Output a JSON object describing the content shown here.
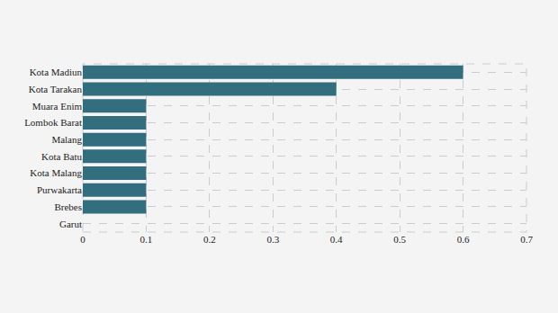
{
  "chart_data": {
    "type": "bar",
    "orientation": "horizontal",
    "categories": [
      "Kota Madiun",
      "Kota Tarakan",
      "Muara Enim",
      "Lombok Barat",
      "Malang",
      "Kota Batu",
      "Kota Malang",
      "Purwakarta",
      "Brebes",
      "Garut"
    ],
    "values": [
      0.6,
      0.4,
      0.1,
      0.1,
      0.1,
      0.1,
      0.1,
      0.1,
      0.1,
      0
    ],
    "color": "#336e7f",
    "xlim": [
      0,
      0.7
    ],
    "xticks": [
      0,
      0.1,
      0.2,
      0.3,
      0.4,
      0.5,
      0.6,
      0.7
    ],
    "grid": true
  }
}
